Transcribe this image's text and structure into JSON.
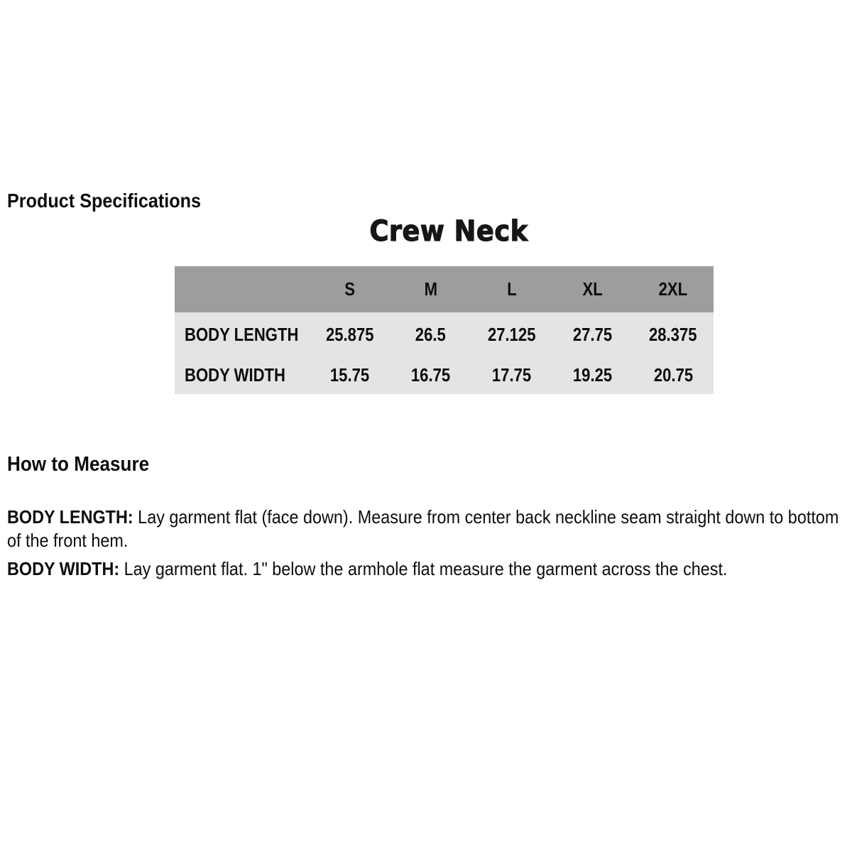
{
  "headings": {
    "product_specifications": "Product Specifications",
    "how_to_measure": "How to Measure"
  },
  "chart_data": {
    "type": "table",
    "title": "Crew Neck",
    "columns": [
      "S",
      "M",
      "L",
      "XL",
      "2XL"
    ],
    "rows": [
      {
        "label": "BODY LENGTH",
        "values": [
          "25.875",
          "26.5",
          "27.125",
          "27.75",
          "28.375"
        ]
      },
      {
        "label": "BODY WIDTH",
        "values": [
          "15.75",
          "16.75",
          "17.75",
          "19.25",
          "20.75"
        ]
      }
    ]
  },
  "instructions": [
    {
      "term": "BODY LENGTH: ",
      "description": "Lay garment flat (face down). Measure from center back neckline seam straight down to bottom of the front hem."
    },
    {
      "term": "BODY WIDTH: ",
      "description": "Lay garment flat. 1\" below the armhole flat measure the garment across the chest."
    }
  ],
  "colors": {
    "table_header_bg": "#9d9da0",
    "table_row_bg": "#e4e4e5",
    "text": "#0d0d0d",
    "background": "#ffffff"
  }
}
